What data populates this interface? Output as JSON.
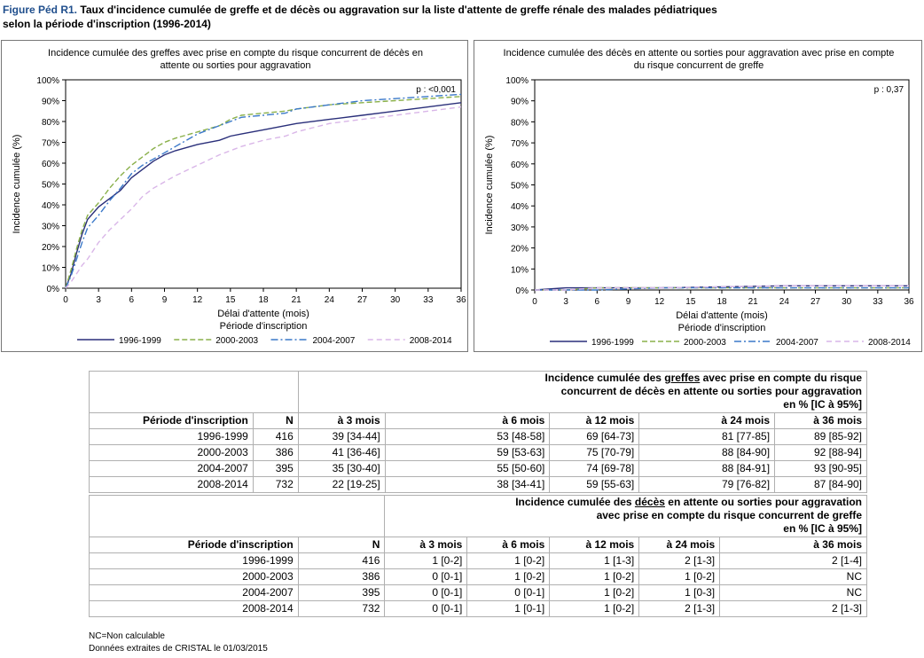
{
  "figure": {
    "label": "Figure Péd R1.",
    "title_line1": "Taux d'incidence cumulée de greffe et de décès ou aggravation sur la liste d'attente de greffe rénale des malades pédiatriques",
    "title_line2": "selon la période d'inscription (1996-2014)"
  },
  "colors": {
    "s1996": "#2a2f7a",
    "s2000": "#8ab04a",
    "s2004": "#3a78c9",
    "s2008": "#d9b6e8",
    "axis": "#000000"
  },
  "chart_data": [
    {
      "type": "line",
      "title_line1": "Incidence cumulée des greffes avec prise en compte du risque concurrent de décès en",
      "title_line2": "attente ou sorties pour aggravation",
      "xlabel": "Délai d'attente (mois)",
      "ylabel": "Incidence cumulée (%)",
      "x_ticks": [
        0,
        3,
        6,
        9,
        12,
        15,
        18,
        21,
        24,
        27,
        30,
        33,
        36
      ],
      "y_ticks": [
        "0%",
        "10%",
        "20%",
        "30%",
        "40%",
        "50%",
        "60%",
        "70%",
        "80%",
        "90%",
        "100%"
      ],
      "xlim": [
        0,
        36
      ],
      "ylim": [
        0,
        100
      ],
      "annotation": "p : <0,001",
      "legend_title": "Période d'inscription",
      "legend_position": "bottom",
      "series": [
        {
          "name": "1996-1999",
          "x": [
            0,
            0.5,
            1,
            1.5,
            2,
            3,
            4,
            5,
            6,
            7,
            8,
            9,
            10,
            12,
            14,
            15,
            16,
            18,
            20,
            21,
            24,
            27,
            30,
            33,
            36
          ],
          "y": [
            0,
            7,
            17,
            26,
            33,
            39,
            43,
            47,
            53,
            57,
            61,
            64,
            66,
            69,
            71,
            73,
            74,
            76,
            78,
            79,
            81,
            83,
            85,
            87,
            89
          ]
        },
        {
          "name": "2000-2003",
          "x": [
            0,
            0.5,
            1,
            1.5,
            2,
            3,
            4,
            5,
            6,
            7,
            8,
            9,
            10,
            12,
            14,
            15,
            16,
            18,
            20,
            21,
            24,
            27,
            30,
            33,
            36
          ],
          "y": [
            0,
            9,
            19,
            28,
            35,
            41,
            48,
            54,
            59,
            63,
            67,
            70,
            72,
            75,
            78,
            81,
            83,
            84,
            85,
            86,
            88,
            89,
            90,
            91,
            92
          ]
        },
        {
          "name": "2004-2007",
          "x": [
            0,
            0.5,
            1,
            1.5,
            2,
            3,
            4,
            5,
            6,
            7,
            8,
            9,
            10,
            12,
            14,
            15,
            16,
            18,
            20,
            21,
            24,
            27,
            30,
            33,
            36
          ],
          "y": [
            0,
            6,
            14,
            22,
            29,
            35,
            42,
            48,
            55,
            59,
            62,
            65,
            68,
            74,
            78,
            80,
            82,
            83,
            84,
            86,
            88,
            90,
            91,
            92,
            93
          ]
        },
        {
          "name": "2008-2014",
          "x": [
            0,
            0.5,
            1,
            1.5,
            2,
            3,
            4,
            5,
            6,
            7,
            8,
            9,
            10,
            12,
            14,
            15,
            16,
            18,
            20,
            21,
            24,
            27,
            30,
            33,
            36
          ],
          "y": [
            0,
            3,
            7,
            11,
            14,
            22,
            28,
            33,
            38,
            44,
            48,
            51,
            54,
            59,
            64,
            66,
            68,
            71,
            73,
            75,
            79,
            81,
            83,
            85,
            87
          ]
        }
      ]
    },
    {
      "type": "line",
      "title_line1": "Incidence cumulée des décès en attente ou sorties pour aggravation avec prise en compte",
      "title_line2": "du risque concurrent de greffe",
      "xlabel": "Délai d'attente (mois)",
      "ylabel": "Incidence cumulée (%)",
      "x_ticks": [
        0,
        3,
        6,
        9,
        12,
        15,
        18,
        21,
        24,
        27,
        30,
        33,
        36
      ],
      "y_ticks": [
        "0%",
        "10%",
        "20%",
        "30%",
        "40%",
        "50%",
        "60%",
        "70%",
        "80%",
        "90%",
        "100%"
      ],
      "xlim": [
        0,
        36
      ],
      "ylim": [
        0,
        100
      ],
      "annotation": "p : 0,37",
      "legend_title": "Période d'inscription",
      "legend_position": "bottom",
      "series": [
        {
          "name": "1996-1999",
          "x": [
            0,
            3,
            6,
            12,
            24,
            36
          ],
          "y": [
            0,
            1,
            1,
            1,
            2,
            2
          ]
        },
        {
          "name": "2000-2003",
          "x": [
            0,
            3,
            6,
            12,
            24,
            36
          ],
          "y": [
            0,
            0,
            1,
            1,
            1,
            1
          ]
        },
        {
          "name": "2004-2007",
          "x": [
            0,
            3,
            6,
            12,
            24,
            36
          ],
          "y": [
            0,
            0,
            0,
            1,
            1,
            1
          ]
        },
        {
          "name": "2008-2014",
          "x": [
            0,
            3,
            6,
            12,
            24,
            36
          ],
          "y": [
            0,
            0,
            1,
            1,
            2,
            2
          ]
        }
      ]
    }
  ],
  "table_greffes": {
    "header_pre": "Incidence cumulée des ",
    "header_underlined": "greffes",
    "header_post": " avec prise en compte du risque",
    "header_line2": "concurrent de décès en attente ou sorties pour aggravation",
    "header_line3": "en % [IC à 95%]",
    "columns": [
      "Période d'inscription",
      "N",
      "à 3 mois",
      "à 6 mois",
      "à 12 mois",
      "à 24 mois",
      "à 36 mois"
    ],
    "rows": [
      [
        "1996-1999",
        "416",
        "39 [34-44]",
        "53 [48-58]",
        "69 [64-73]",
        "81 [77-85]",
        "89 [85-92]"
      ],
      [
        "2000-2003",
        "386",
        "41 [36-46]",
        "59 [53-63]",
        "75 [70-79]",
        "88 [84-90]",
        "92 [88-94]"
      ],
      [
        "2004-2007",
        "395",
        "35 [30-40]",
        "55 [50-60]",
        "74 [69-78]",
        "88 [84-91]",
        "93 [90-95]"
      ],
      [
        "2008-2014",
        "732",
        "22 [19-25]",
        "38 [34-41]",
        "59 [55-63]",
        "79 [76-82]",
        "87 [84-90]"
      ]
    ]
  },
  "table_deces": {
    "header_pre": "Incidence cumulée des ",
    "header_underlined": "décès",
    "header_post": " en attente ou sorties pour aggravation",
    "header_line2": "avec prise en compte du risque concurrent de greffe",
    "header_line3": "en % [IC à 95%]",
    "columns": [
      "Période d'inscription",
      "N",
      "à 3 mois",
      "à 6 mois",
      "à 12 mois",
      "à 24 mois",
      "à 36 mois"
    ],
    "rows": [
      [
        "1996-1999",
        "416",
        "1 [0-2]",
        "1 [0-2]",
        "1 [1-3]",
        "2 [1-3]",
        "2 [1-4]"
      ],
      [
        "2000-2003",
        "386",
        "0 [0-1]",
        "1 [0-2]",
        "1 [0-2]",
        "1 [0-2]",
        "NC"
      ],
      [
        "2004-2007",
        "395",
        "0 [0-1]",
        "0 [0-1]",
        "1 [0-2]",
        "1 [0-3]",
        "NC"
      ],
      [
        "2008-2014",
        "732",
        "0 [0-1]",
        "1 [0-1]",
        "1 [0-2]",
        "2 [1-3]",
        "2 [1-3]"
      ]
    ]
  },
  "footnotes": {
    "nc": "NC=Non calculable",
    "source": "Données extraites de CRISTAL le 01/03/2015"
  }
}
